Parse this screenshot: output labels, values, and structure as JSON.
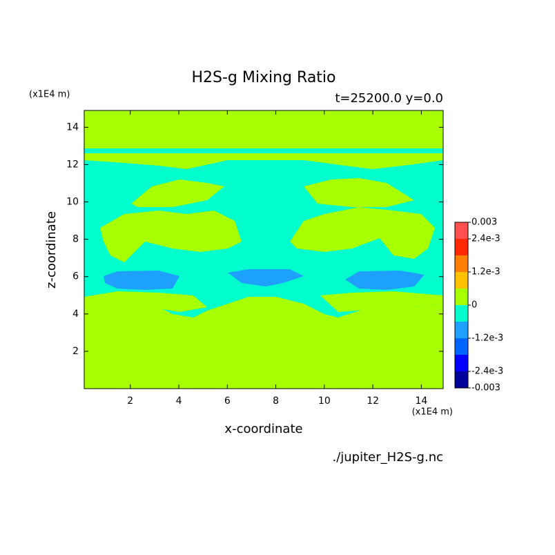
{
  "chart_data": {
    "type": "contour",
    "title": "H2S-g Mixing Ratio",
    "subtitle": "t=25200.0 y=0.0",
    "x_label": "x-coordinate",
    "y_label": "z-coordinate",
    "x_unit": "(x1E4 m)",
    "y_unit": "(x1E4 m)",
    "source": "./jupiter_H2S-g.nc",
    "xlim": [
      0.1,
      14.9
    ],
    "ylim": [
      0,
      14.9
    ],
    "xticks": [
      2,
      4,
      6,
      8,
      10,
      12,
      14
    ],
    "yticks": [
      2,
      4,
      6,
      8,
      10,
      12,
      14
    ],
    "colorbar": {
      "levels": [
        -0.003,
        -0.0024,
        -0.0018,
        -0.0012,
        -0.0006,
        0,
        0.0006,
        0.0012,
        0.0018,
        0.0024,
        0.003
      ],
      "colors": [
        "#00009a",
        "#0000ff",
        "#0064ff",
        "#1ea0ff",
        "#00ffcc",
        "#a8ff00",
        "#ffc000",
        "#ff8000",
        "#ff2800",
        "#ff5050"
      ],
      "ticks": [
        0.003,
        {
          "value": 0.0024,
          "label": "2.4e-3"
        },
        {
          "value": 0.0012,
          "label": "1.2e-3"
        },
        0,
        {
          "value": -0.0012,
          "label": "-1.2e-3"
        },
        {
          "value": -0.0024,
          "label": "-2.4e-3"
        },
        -0.003
      ]
    }
  }
}
